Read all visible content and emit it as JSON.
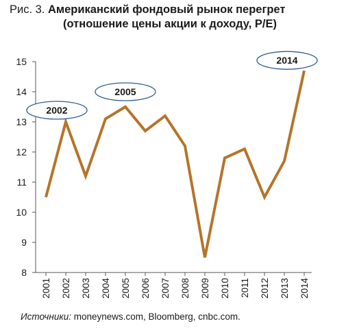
{
  "title": {
    "prefix": "Рис. 3.",
    "line1": "Американский фондовый рынок перегрет",
    "line2": "(отношение цены акции к доходу, P/E)"
  },
  "source": {
    "lead": "Источники:",
    "text": " moneynews.com, Bloomberg, cnbc.com."
  },
  "colors": {
    "line": "#B5742A",
    "axis": "#555555",
    "callout_border": "#2F5D8E"
  },
  "chart_data": {
    "type": "line",
    "x": [
      "2001",
      "2002",
      "2003",
      "2004",
      "2005",
      "2006",
      "2007",
      "2008",
      "2009",
      "2010",
      "2011",
      "2012",
      "2013",
      "2014"
    ],
    "values": [
      10.5,
      13.0,
      11.2,
      13.1,
      13.5,
      12.7,
      13.2,
      12.2,
      8.5,
      11.8,
      12.1,
      10.5,
      11.7,
      14.7
    ],
    "ylim": [
      8,
      15
    ],
    "yticks": [
      8,
      9,
      10,
      11,
      12,
      13,
      14,
      15
    ],
    "grid": false,
    "callouts": [
      {
        "label": "2002",
        "year": "2002"
      },
      {
        "label": "2005",
        "year": "2005"
      },
      {
        "label": "2014",
        "year": "2014"
      }
    ]
  }
}
